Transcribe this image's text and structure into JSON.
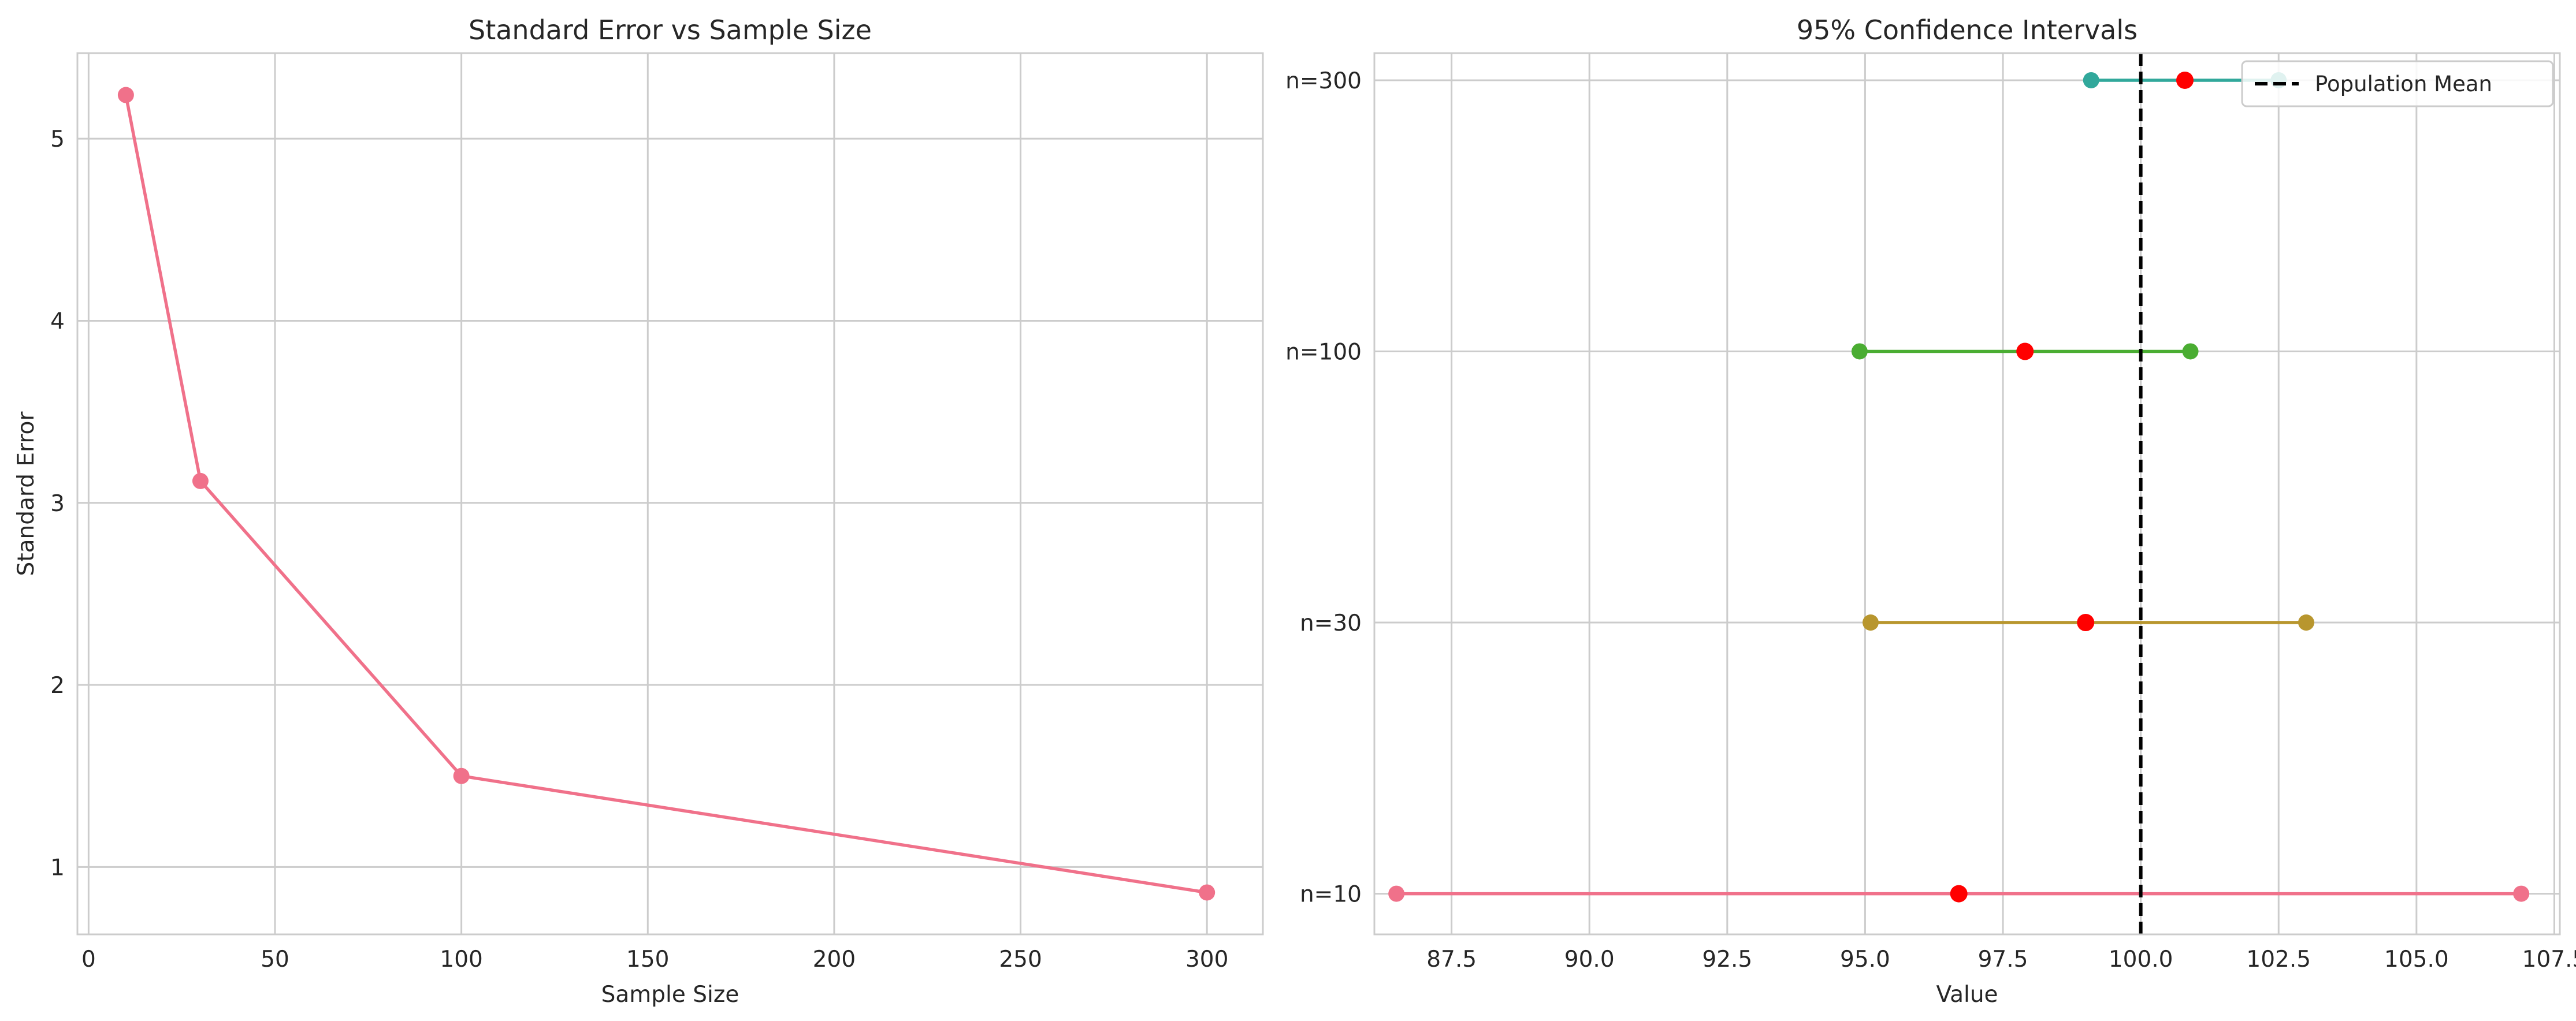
{
  "colors": {
    "grid": "#cccccc",
    "axes_edge": "#cccccc",
    "text": "#262626",
    "mean_point": "#ff0000",
    "population_line": "#000000"
  },
  "chart_data": [
    {
      "type": "line",
      "title": "Standard Error vs Sample Size",
      "xlabel": "Sample Size",
      "ylabel": "Standard Error",
      "xlim": [
        -3,
        315
      ],
      "ylim": [
        0.63,
        5.47
      ],
      "xticks": [
        0,
        50,
        100,
        150,
        200,
        250,
        300
      ],
      "xtick_labels": [
        "0",
        "50",
        "100",
        "150",
        "200",
        "250",
        "300"
      ],
      "yticks": [
        1,
        2,
        3,
        4,
        5
      ],
      "ytick_labels": [
        "1",
        "2",
        "3",
        "4",
        "5"
      ],
      "grid": true,
      "series": [
        {
          "color": "#f0718a",
          "x": [
            10,
            30,
            100,
            300
          ],
          "y": [
            5.24,
            3.12,
            1.5,
            0.86
          ]
        }
      ]
    },
    {
      "type": "errorbar",
      "title": "95% Confidence Intervals",
      "xlabel": "Value",
      "ylabel": "",
      "xlim": [
        86.1,
        107.6
      ],
      "ylim": [
        -0.15,
        3.1
      ],
      "xticks": [
        87.5,
        90.0,
        92.5,
        95.0,
        97.5,
        100.0,
        102.5,
        105.0,
        107.5
      ],
      "xtick_labels": [
        "87.5",
        "90.0",
        "92.5",
        "95.0",
        "97.5",
        "100.0",
        "102.5",
        "105.0",
        "107.5"
      ],
      "categories": [
        "n=10",
        "n=30",
        "n=100",
        "n=300"
      ],
      "intervals": [
        {
          "lower": 86.5,
          "upper": 106.9,
          "mean": 96.7,
          "color": "#f0718a"
        },
        {
          "lower": 95.1,
          "upper": 103.0,
          "mean": 99.0,
          "color": "#b8962e"
        },
        {
          "lower": 94.9,
          "upper": 100.9,
          "mean": 97.9,
          "color": "#4aad32"
        },
        {
          "lower": 99.1,
          "upper": 102.5,
          "mean": 100.8,
          "color": "#31a89b"
        }
      ],
      "reference_line": {
        "x": 100.0,
        "label": "Population Mean",
        "style": "dashed"
      },
      "legend": {
        "position": "top-right",
        "entries": [
          "Population Mean"
        ]
      },
      "grid": true
    }
  ]
}
